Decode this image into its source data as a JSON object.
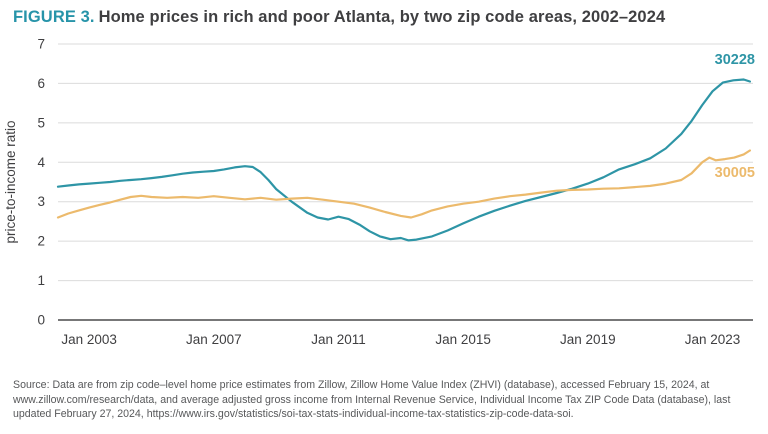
{
  "title": {
    "figure_label": "FIGURE 3.",
    "text": "Home prices in rich and poor Atlanta, by two zip code areas, 2002–2024"
  },
  "source": {
    "text": "Source: Data are from zip code–level home price estimates from Zillow, Zillow Home Value Index (ZHVI) (database), accessed February 15, 2024, at www.zillow.com/research/data, and average adjusted gross income from Internal Revenue Service, Individual Income Tax ZIP Code Data (database), last updated February 27, 2024, https://www.irs.gov/statistics/soi-tax-stats-individual-income-tax-statistics-zip-code-data-soi."
  },
  "chart_data": {
    "type": "line",
    "title": "Home prices in rich and poor Atlanta, by two zip code areas, 2002–2024",
    "xlabel": "",
    "ylabel": "price-to-income ratio",
    "ylim": [
      0,
      7
    ],
    "yticks": [
      0,
      1,
      2,
      3,
      4,
      5,
      6,
      7
    ],
    "xlim": [
      2002.0,
      2024.3
    ],
    "xticks": [
      {
        "value": 2003,
        "label": "Jan 2003"
      },
      {
        "value": 2007,
        "label": "Jan 2007"
      },
      {
        "value": 2011,
        "label": "Jan 2011"
      },
      {
        "value": 2015,
        "label": "Jan 2015"
      },
      {
        "value": 2019,
        "label": "Jan 2019"
      },
      {
        "value": 2023,
        "label": "Jan 2023"
      }
    ],
    "grid": "horizontal",
    "legend_position": "end-of-line-labels",
    "colors": {
      "teal": "#2e95a6",
      "orange": "#ecba6c",
      "grid": "#dbdbdb",
      "axis": "#4a4a4c",
      "tick_text": "#3f3f41"
    },
    "series": [
      {
        "name": "30228",
        "color_key": "teal",
        "label_y": 6.62,
        "x": [
          2002.0,
          2002.33,
          2002.67,
          2003.0,
          2003.33,
          2003.67,
          2004.0,
          2004.33,
          2004.67,
          2005.0,
          2005.33,
          2005.67,
          2006.0,
          2006.33,
          2006.67,
          2007.0,
          2007.33,
          2007.67,
          2008.0,
          2008.25,
          2008.5,
          2008.75,
          2009.0,
          2009.5,
          2010.0,
          2010.33,
          2010.67,
          2011.0,
          2011.33,
          2011.67,
          2012.0,
          2012.33,
          2012.67,
          2013.0,
          2013.25,
          2013.5,
          2014.0,
          2014.5,
          2015.0,
          2015.5,
          2016.0,
          2016.5,
          2017.0,
          2017.5,
          2018.0,
          2018.5,
          2019.0,
          2019.5,
          2020.0,
          2020.5,
          2021.0,
          2021.5,
          2022.0,
          2022.33,
          2022.67,
          2023.0,
          2023.33,
          2023.67,
          2024.0,
          2024.2
        ],
        "y": [
          3.38,
          3.41,
          3.44,
          3.46,
          3.48,
          3.5,
          3.53,
          3.55,
          3.57,
          3.6,
          3.63,
          3.67,
          3.71,
          3.74,
          3.76,
          3.78,
          3.82,
          3.87,
          3.9,
          3.88,
          3.75,
          3.55,
          3.32,
          3.0,
          2.72,
          2.6,
          2.55,
          2.62,
          2.56,
          2.42,
          2.25,
          2.12,
          2.05,
          2.08,
          2.02,
          2.04,
          2.12,
          2.27,
          2.45,
          2.62,
          2.77,
          2.9,
          3.02,
          3.12,
          3.22,
          3.33,
          3.46,
          3.62,
          3.82,
          3.95,
          4.1,
          4.35,
          4.72,
          5.05,
          5.45,
          5.8,
          6.02,
          6.08,
          6.1,
          6.05
        ]
      },
      {
        "name": "30005",
        "color_key": "orange",
        "label_y": 3.75,
        "x": [
          2002.0,
          2002.33,
          2002.67,
          2003.0,
          2003.33,
          2003.67,
          2004.0,
          2004.33,
          2004.67,
          2005.0,
          2005.5,
          2006.0,
          2006.5,
          2007.0,
          2007.5,
          2008.0,
          2008.5,
          2009.0,
          2009.5,
          2010.0,
          2010.5,
          2011.0,
          2011.5,
          2012.0,
          2012.5,
          2013.0,
          2013.33,
          2013.67,
          2014.0,
          2014.5,
          2015.0,
          2015.5,
          2016.0,
          2016.5,
          2017.0,
          2017.5,
          2018.0,
          2018.5,
          2019.0,
          2019.5,
          2020.0,
          2020.5,
          2021.0,
          2021.5,
          2022.0,
          2022.33,
          2022.67,
          2022.9,
          2023.1,
          2023.4,
          2023.7,
          2024.0,
          2024.2
        ],
        "y": [
          2.6,
          2.7,
          2.78,
          2.85,
          2.92,
          2.98,
          3.05,
          3.12,
          3.15,
          3.12,
          3.1,
          3.12,
          3.1,
          3.14,
          3.1,
          3.06,
          3.1,
          3.05,
          3.08,
          3.1,
          3.05,
          3.0,
          2.95,
          2.85,
          2.74,
          2.64,
          2.6,
          2.68,
          2.78,
          2.88,
          2.95,
          3.0,
          3.08,
          3.14,
          3.18,
          3.23,
          3.28,
          3.3,
          3.31,
          3.33,
          3.34,
          3.37,
          3.4,
          3.46,
          3.55,
          3.72,
          4.0,
          4.12,
          4.05,
          4.08,
          4.12,
          4.2,
          4.3
        ]
      }
    ]
  }
}
